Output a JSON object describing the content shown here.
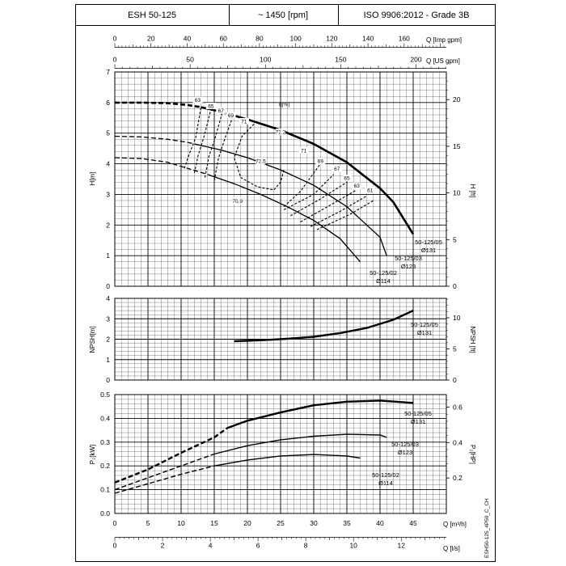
{
  "header": {
    "model": "ESH 50-125",
    "speed": "~ 1450 [rpm]",
    "standard": "ISO 9906:2012 - Grade 3B"
  },
  "side_code": "ESH50-125_4P50_C_CH",
  "axes": {
    "q_imp_label": "Q [Imp gpm]",
    "q_imp_ticks": [
      "0",
      "20",
      "40",
      "60",
      "80",
      "100",
      "120",
      "140",
      "160"
    ],
    "q_us_label": "Q [US gpm]",
    "q_us_ticks": [
      "0",
      "50",
      "100",
      "150",
      "200"
    ],
    "q_m3h_label": "Q [m³/h]",
    "q_m3h_ticks": [
      "0",
      "5",
      "10",
      "15",
      "20",
      "25",
      "30",
      "35",
      "40",
      "45"
    ],
    "q_ls_label": "Q [l/s]",
    "q_ls_ticks": [
      "0",
      "2",
      "4",
      "6",
      "8",
      "10",
      "12"
    ]
  },
  "chart_data": [
    {
      "type": "line",
      "name": "head",
      "ylabel": "H[m]",
      "ylabel_right": "H [ft]",
      "xlim": [
        0,
        50
      ],
      "ylim": [
        0,
        7
      ],
      "yticks": [
        "0",
        "1",
        "2",
        "3",
        "4",
        "5",
        "6",
        "7"
      ],
      "yticks_right": [
        "0",
        "5",
        "10",
        "15",
        "20"
      ],
      "efficiency_label": "η[%]",
      "series": [
        {
          "name": "50-125/05",
          "diameter": "Ø131",
          "dashed": [
            [
              0,
              6.0
            ],
            [
              4,
              6.0
            ],
            [
              8,
              5.98
            ],
            [
              11,
              5.92
            ],
            [
              13,
              5.85
            ]
          ],
          "solid": [
            [
              13,
              5.85
            ],
            [
              16,
              5.7
            ],
            [
              20,
              5.45
            ],
            [
              25,
              5.1
            ],
            [
              30,
              4.65
            ],
            [
              35,
              4.05
            ],
            [
              40,
              3.2
            ],
            [
              42,
              2.75
            ],
            [
              45,
              1.7
            ]
          ]
        },
        {
          "name": "50-125/03",
          "diameter": "Ø123",
          "dashed": [
            [
              0,
              4.9
            ],
            [
              4,
              4.88
            ],
            [
              8,
              4.8
            ],
            [
              11,
              4.7
            ],
            [
              12,
              4.65
            ]
          ],
          "solid": [
            [
              12,
              4.65
            ],
            [
              16,
              4.45
            ],
            [
              20,
              4.2
            ],
            [
              25,
              3.8
            ],
            [
              30,
              3.3
            ],
            [
              35,
              2.6
            ],
            [
              38,
              2.0
            ],
            [
              40,
              1.6
            ],
            [
              41,
              1.0
            ]
          ]
        },
        {
          "name": "50-125/02",
          "diameter": "Ø114",
          "dashed": [
            [
              0,
              4.2
            ],
            [
              4,
              4.17
            ],
            [
              8,
              4.05
            ],
            [
              11,
              3.85
            ],
            [
              14,
              3.65
            ]
          ],
          "solid": [
            [
              14,
              3.65
            ],
            [
              18,
              3.35
            ],
            [
              22,
              3.0
            ],
            [
              26,
              2.6
            ],
            [
              30,
              2.15
            ],
            [
              34,
              1.55
            ],
            [
              37,
              0.8
            ]
          ]
        }
      ],
      "efficiency_labels": [
        {
          "text": "63",
          "q": 12.5,
          "h": 6.05
        },
        {
          "text": "65",
          "q": 14.5,
          "h": 5.85
        },
        {
          "text": "67",
          "q": 16.0,
          "h": 5.7
        },
        {
          "text": "69",
          "q": 17.5,
          "h": 5.55
        },
        {
          "text": "71",
          "q": 19.5,
          "h": 5.35
        },
        {
          "text": "72.2",
          "q": 25.0,
          "h": 5.0
        },
        {
          "text": "72.5",
          "q": 22.0,
          "h": 4.05
        },
        {
          "text": "70.9",
          "q": 18.5,
          "h": 2.75
        },
        {
          "text": "71",
          "q": 28.5,
          "h": 4.4
        },
        {
          "text": "69",
          "q": 31.0,
          "h": 4.05
        },
        {
          "text": "67",
          "q": 33.5,
          "h": 3.8
        },
        {
          "text": "65",
          "q": 35.0,
          "h": 3.5
        },
        {
          "text": "63",
          "q": 36.5,
          "h": 3.25
        },
        {
          "text": "61",
          "q": 38.5,
          "h": 3.1
        }
      ],
      "efficiency_lines": [
        [
          [
            10.5,
            3.85
          ],
          [
            11.2,
            4.3
          ],
          [
            12.2,
            4.85
          ],
          [
            13,
            5.85
          ]
        ],
        [
          [
            12.0,
            3.7
          ],
          [
            12.6,
            4.3
          ],
          [
            13.4,
            4.85
          ],
          [
            14.5,
            5.78
          ]
        ],
        [
          [
            13.6,
            3.55
          ],
          [
            14.2,
            4.25
          ],
          [
            15.0,
            4.75
          ],
          [
            16.2,
            5.66
          ]
        ],
        [
          [
            15.0,
            3.45
          ],
          [
            15.6,
            4.15
          ],
          [
            16.4,
            4.7
          ],
          [
            17.8,
            5.55
          ]
        ],
        [
          [
            21.0,
            5.3
          ],
          [
            19.2,
            4.9
          ],
          [
            18.0,
            4.2
          ],
          [
            19.0,
            3.55
          ],
          [
            21.5,
            3.25
          ],
          [
            24.0,
            3.15
          ]
        ],
        [
          [
            24.0,
            3.15
          ],
          [
            25.0,
            3.4
          ],
          [
            25.5,
            3.8
          ]
        ],
        [
          [
            25.5,
            2.6
          ],
          [
            28.0,
            3.1
          ],
          [
            31.0,
            4.0
          ]
        ],
        [
          [
            25.5,
            2.5
          ],
          [
            30.0,
            3.0
          ],
          [
            33.0,
            3.65
          ]
        ],
        [
          [
            26.5,
            2.3
          ],
          [
            31.0,
            2.85
          ],
          [
            35.0,
            3.4
          ]
        ],
        [
          [
            28.0,
            2.1
          ],
          [
            32.5,
            2.65
          ],
          [
            36.5,
            3.15
          ]
        ],
        [
          [
            29.5,
            1.95
          ],
          [
            34.0,
            2.45
          ],
          [
            38.0,
            2.95
          ]
        ],
        [
          [
            30.5,
            1.85
          ],
          [
            35.5,
            2.35
          ],
          [
            39.0,
            2.8
          ]
        ]
      ]
    },
    {
      "type": "line",
      "name": "npsh",
      "ylabel": "NPSH[m]",
      "ylabel_right": "NPSH [ft]",
      "xlim": [
        0,
        50
      ],
      "ylim": [
        0,
        4
      ],
      "yticks": [
        "0",
        "1",
        "2",
        "3",
        "4"
      ],
      "yticks_right": [
        "0",
        "5",
        "10"
      ],
      "series": [
        {
          "name": "50-125/05",
          "diameter": "Ø131",
          "solid": [
            [
              18,
              1.9
            ],
            [
              22,
              1.95
            ],
            [
              26,
              2.02
            ],
            [
              30,
              2.12
            ],
            [
              34,
              2.3
            ],
            [
              38,
              2.55
            ],
            [
              42,
              2.95
            ],
            [
              45,
              3.4
            ]
          ]
        }
      ]
    },
    {
      "type": "line",
      "name": "power",
      "ylabel": "P₂[kW]",
      "ylabel_right": "P₂[HP]",
      "xlim": [
        0,
        50
      ],
      "ylim": [
        0,
        0.5
      ],
      "yticks": [
        "0.0",
        "0.1",
        "0.2",
        "0.3",
        "0.4",
        "0.5"
      ],
      "yticks_right": [
        "0.2",
        "0.4",
        "0.6"
      ],
      "series": [
        {
          "name": "50-125/05",
          "diameter": "Ø131",
          "dashed": [
            [
              0,
              0.13
            ],
            [
              5,
              0.185
            ],
            [
              10,
              0.255
            ],
            [
              15,
              0.32
            ],
            [
              17,
              0.36
            ]
          ],
          "solid": [
            [
              17,
              0.36
            ],
            [
              20,
              0.39
            ],
            [
              25,
              0.425
            ],
            [
              30,
              0.455
            ],
            [
              35,
              0.47
            ],
            [
              40,
              0.475
            ],
            [
              45,
              0.465
            ]
          ]
        },
        {
          "name": "50-125/03",
          "diameter": "Ø123",
          "dashed": [
            [
              0,
              0.1
            ],
            [
              5,
              0.15
            ],
            [
              10,
              0.2
            ],
            [
              15,
              0.25
            ]
          ],
          "solid": [
            [
              15,
              0.25
            ],
            [
              20,
              0.285
            ],
            [
              25,
              0.31
            ],
            [
              30,
              0.325
            ],
            [
              35,
              0.333
            ],
            [
              40,
              0.33
            ],
            [
              41,
              0.32
            ]
          ]
        },
        {
          "name": "50-125/02",
          "diameter": "Ø114",
          "dashed": [
            [
              0,
              0.085
            ],
            [
              5,
              0.125
            ],
            [
              10,
              0.165
            ],
            [
              15,
              0.2
            ]
          ],
          "solid": [
            [
              15,
              0.2
            ],
            [
              20,
              0.225
            ],
            [
              25,
              0.242
            ],
            [
              30,
              0.248
            ],
            [
              35,
              0.242
            ],
            [
              37,
              0.233
            ]
          ]
        }
      ]
    }
  ]
}
